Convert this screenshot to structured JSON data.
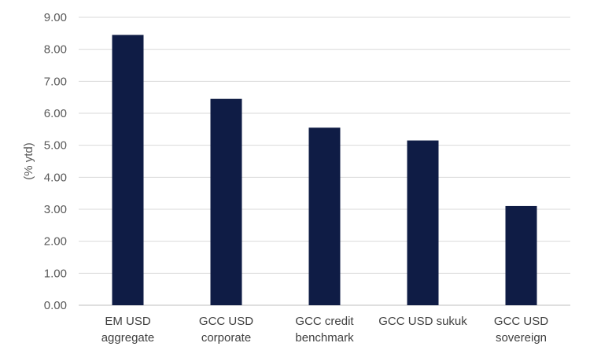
{
  "chart_data": {
    "type": "bar",
    "categories": [
      [
        "EM USD",
        "aggregate"
      ],
      [
        "GCC USD",
        "corporate"
      ],
      [
        "GCC credit",
        "benchmark"
      ],
      [
        "GCC USD sukuk"
      ],
      [
        "GCC USD",
        "sovereign"
      ]
    ],
    "values": [
      8.45,
      6.45,
      5.55,
      5.15,
      3.1
    ],
    "ylabel": "(% ytd)",
    "ylim": [
      0,
      9
    ],
    "yticks": [
      "0.00",
      "1.00",
      "2.00",
      "3.00",
      "4.00",
      "5.00",
      "6.00",
      "7.00",
      "8.00",
      "9.00"
    ],
    "grid": true,
    "legend": "none",
    "colors": {
      "bar": "#0f1c45",
      "grid": "#d9d9d9"
    }
  }
}
